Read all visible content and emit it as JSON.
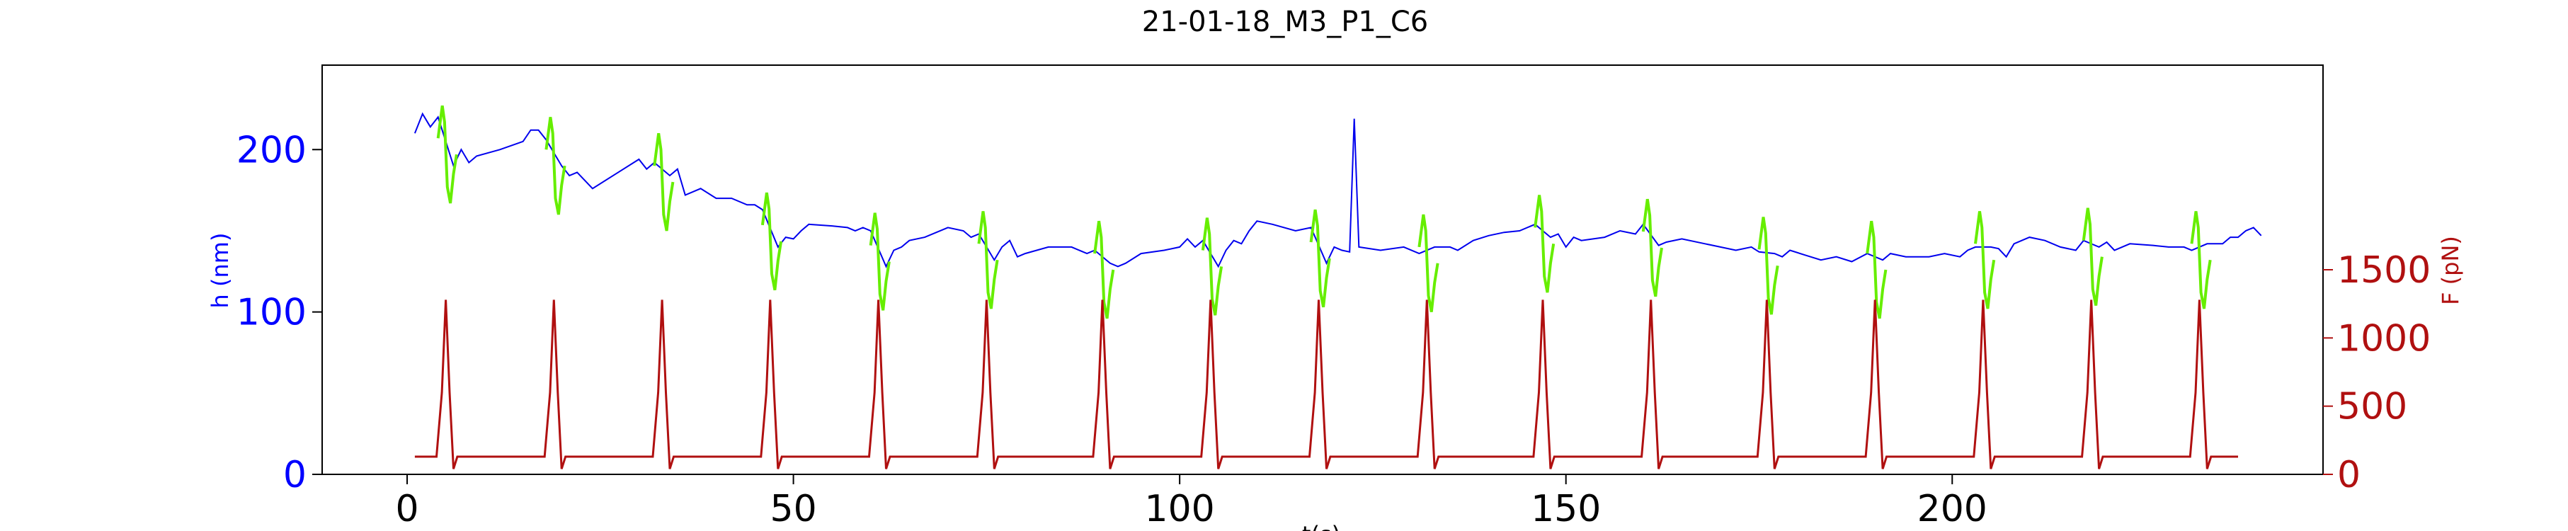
{
  "chart_data": {
    "type": "line",
    "title": "21-01-18_M3_P1_C6",
    "xlabel": "t(s)",
    "ylabel_left": "h (nm)",
    "ylabel_right": "F (pN)",
    "xlim": [
      -11,
      248
    ],
    "ylim_left": [
      0,
      252
    ],
    "ylim_right": [
      0,
      3000
    ],
    "x_ticks": [
      0,
      50,
      100,
      150,
      200
    ],
    "y_left_ticks": [
      0,
      100,
      200
    ],
    "y_right_ticks": [
      0,
      500,
      1000,
      1500
    ],
    "grid": false,
    "colors": {
      "height": "#0000ee",
      "height_pulse": "#66ee00",
      "force": "#b01010",
      "left_axis": "#0000ff",
      "right_axis": "#b01010"
    },
    "pulse_times": [
      5,
      19,
      33,
      47,
      61,
      75,
      90,
      104,
      118,
      132,
      147,
      161,
      176,
      190,
      204,
      218,
      232
    ],
    "pulse_amplitude_pN": 1150,
    "baseline_force_pN": 130,
    "series": [
      {
        "key": "height",
        "points": [
          [
            1,
            210
          ],
          [
            2,
            222
          ],
          [
            3,
            214
          ],
          [
            4,
            220
          ],
          [
            6,
            190
          ],
          [
            7,
            200
          ],
          [
            8,
            192
          ],
          [
            9,
            196
          ],
          [
            12,
            200
          ],
          [
            15,
            205
          ],
          [
            16,
            212
          ],
          [
            17,
            212
          ],
          [
            18,
            206
          ],
          [
            20,
            190
          ],
          [
            21,
            184
          ],
          [
            22,
            186
          ],
          [
            24,
            176
          ],
          [
            27,
            185
          ],
          [
            30,
            194
          ],
          [
            31,
            188
          ],
          [
            32,
            192
          ],
          [
            34,
            184
          ],
          [
            35,
            188
          ],
          [
            36,
            172
          ],
          [
            38,
            176
          ],
          [
            40,
            170
          ],
          [
            42,
            170
          ],
          [
            44,
            166
          ],
          [
            45,
            166
          ],
          [
            46,
            163
          ],
          [
            48,
            140
          ],
          [
            49,
            146
          ],
          [
            50,
            145
          ],
          [
            51,
            150
          ],
          [
            52,
            154
          ],
          [
            55,
            153
          ],
          [
            57,
            152
          ],
          [
            58,
            150
          ],
          [
            59,
            152
          ],
          [
            60,
            150
          ],
          [
            62,
            128
          ],
          [
            63,
            138
          ],
          [
            64,
            140
          ],
          [
            65,
            144
          ],
          [
            67,
            146
          ],
          [
            70,
            152
          ],
          [
            72,
            150
          ],
          [
            73,
            146
          ],
          [
            74,
            148
          ],
          [
            76,
            132
          ],
          [
            77,
            140
          ],
          [
            78,
            144
          ],
          [
            79,
            134
          ],
          [
            80,
            136
          ],
          [
            83,
            140
          ],
          [
            86,
            140
          ],
          [
            88,
            136
          ],
          [
            89,
            138
          ],
          [
            91,
            130
          ],
          [
            92,
            128
          ],
          [
            93,
            130
          ],
          [
            95,
            136
          ],
          [
            98,
            138
          ],
          [
            100,
            140
          ],
          [
            101,
            145
          ],
          [
            102,
            140
          ],
          [
            103,
            144
          ],
          [
            105,
            128
          ],
          [
            106,
            138
          ],
          [
            107,
            144
          ],
          [
            108,
            142
          ],
          [
            109,
            150
          ],
          [
            110,
            156
          ],
          [
            112,
            154
          ],
          [
            115,
            150
          ],
          [
            117,
            152
          ],
          [
            119,
            130
          ],
          [
            120,
            140
          ],
          [
            121,
            138
          ],
          [
            122,
            137
          ],
          [
            122.6,
            219
          ],
          [
            123.2,
            140
          ],
          [
            126,
            138
          ],
          [
            129,
            140
          ],
          [
            131,
            136
          ],
          [
            133,
            140
          ],
          [
            135,
            140
          ],
          [
            136,
            138
          ],
          [
            138,
            144
          ],
          [
            140,
            147
          ],
          [
            142,
            149
          ],
          [
            144,
            150
          ],
          [
            146,
            154
          ],
          [
            148,
            146
          ],
          [
            149,
            148
          ],
          [
            150,
            140
          ],
          [
            151,
            146
          ],
          [
            152,
            144
          ],
          [
            155,
            146
          ],
          [
            157,
            150
          ],
          [
            159,
            148
          ],
          [
            160,
            154
          ],
          [
            162,
            141
          ],
          [
            163,
            143
          ],
          [
            165,
            145
          ],
          [
            168,
            142
          ],
          [
            170,
            140
          ],
          [
            172,
            138
          ],
          [
            174,
            140
          ],
          [
            175,
            137
          ],
          [
            177,
            136
          ],
          [
            178,
            134
          ],
          [
            179,
            138
          ],
          [
            181,
            135
          ],
          [
            183,
            132
          ],
          [
            185,
            134
          ],
          [
            187,
            131
          ],
          [
            189,
            136
          ],
          [
            191,
            132
          ],
          [
            192,
            136
          ],
          [
            194,
            134
          ],
          [
            197,
            134
          ],
          [
            199,
            136
          ],
          [
            201,
            134
          ],
          [
            202,
            138
          ],
          [
            203,
            140
          ],
          [
            205,
            140
          ],
          [
            206,
            139
          ],
          [
            207,
            134
          ],
          [
            208,
            142
          ],
          [
            210,
            146
          ],
          [
            212,
            144
          ],
          [
            214,
            140
          ],
          [
            216,
            138
          ],
          [
            217,
            144
          ],
          [
            219,
            140
          ],
          [
            220,
            143
          ],
          [
            221,
            138
          ],
          [
            223,
            142
          ],
          [
            226,
            141
          ],
          [
            228,
            140
          ],
          [
            230,
            140
          ],
          [
            231,
            138
          ],
          [
            233,
            142
          ],
          [
            235,
            142
          ],
          [
            236,
            146
          ],
          [
            237,
            146
          ],
          [
            238,
            150
          ],
          [
            239,
            152
          ],
          [
            240,
            147
          ]
        ]
      }
    ]
  }
}
